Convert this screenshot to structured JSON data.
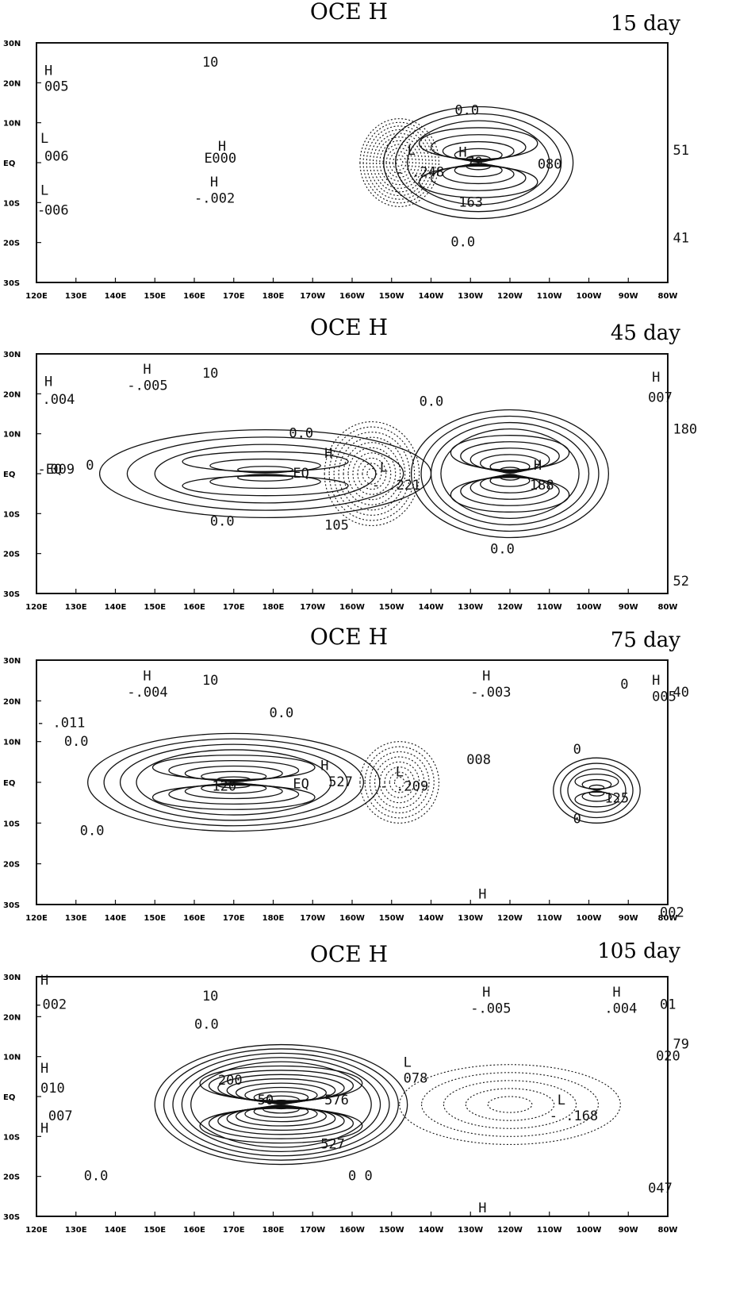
{
  "panels": [
    {
      "title": "OCE H",
      "day": "15 day",
      "annotations": [
        {
          "text": "H",
          "lon": 122,
          "lat": 22
        },
        {
          "text": "005",
          "lon": 122,
          "lat": 18
        },
        {
          "text": "L",
          "lon": 121,
          "lat": 5
        },
        {
          "text": "006",
          "lon": 122,
          "lat": 0.5
        },
        {
          "text": "L",
          "lon": 121,
          "lat": -8
        },
        {
          "text": "- ",
          "lon": 120.2,
          "lat": -13
        },
        {
          "text": "006",
          "lon": 122,
          "lat": -13
        },
        {
          "text": "10",
          "lon": 162,
          "lat": 24
        },
        {
          "text": "H",
          "lon": 166,
          "lat": 3
        },
        {
          "text": "000",
          "lon": 164.5,
          "lat": 0
        },
        {
          "text": "E",
          "lon": 162.5,
          "lat": 0
        },
        {
          "text": "H",
          "lon": 164,
          "lat": -6
        },
        {
          "text": "-.002",
          "lon": 160,
          "lat": -10
        },
        {
          "text": "0.0",
          "lon": 226,
          "lat": 12
        },
        {
          "text": "L",
          "lon": 214,
          "lat": 2
        },
        {
          "text": "- .248",
          "lon": 211,
          "lat": -3.5
        },
        {
          "text": "H",
          "lon": 227,
          "lat": 1.5
        },
        {
          "text": "79",
          "lon": 229,
          "lat": -1
        },
        {
          "text": "163",
          "lon": 227,
          "lat": -11
        },
        {
          "text": "080",
          "lon": 247,
          "lat": -1.5
        },
        {
          "text": "0.0",
          "lon": 225,
          "lat": -21
        },
        {
          "text": "51",
          "lon": 281.3,
          "lat": 2
        },
        {
          "text": "41",
          "lon": 281.3,
          "lat": -20
        }
      ],
      "legend_note": ""
    },
    {
      "title": "OCE H",
      "day": "45 day",
      "annotations": [
        {
          "text": "H",
          "lon": 122,
          "lat": 22
        },
        {
          "text": ".004",
          "lon": 121.5,
          "lat": 17.5
        },
        {
          "text": "H",
          "lon": 147,
          "lat": 25
        },
        {
          "text": "-.005",
          "lon": 143,
          "lat": 21
        },
        {
          "text": "10",
          "lon": 162,
          "lat": 24
        },
        {
          "text": "-EQ",
          "lon": 120.3,
          "lat": 0
        },
        {
          "text": "009",
          "lon": 123.5,
          "lat": 0
        },
        {
          "text": "0",
          "lon": 132.5,
          "lat": 1
        },
        {
          "text": "0.0",
          "lon": 184,
          "lat": 9
        },
        {
          "text": "EQ",
          "lon": 185,
          "lat": -1
        },
        {
          "text": "H",
          "lon": 193,
          "lat": 4
        },
        {
          "text": "- .221",
          "lon": 205,
          "lat": -4
        },
        {
          "text": "L",
          "lon": 207,
          "lat": 0.5
        },
        {
          "text": "105",
          "lon": 193,
          "lat": -14
        },
        {
          "text": "0.0",
          "lon": 164,
          "lat": -13
        },
        {
          "text": "0.0",
          "lon": 217,
          "lat": 17
        },
        {
          "text": "H",
          "lon": 246,
          "lat": 1
        },
        {
          "text": "188",
          "lon": 245,
          "lat": -4
        },
        {
          "text": "0.0",
          "lon": 235,
          "lat": -20
        },
        {
          "text": "007",
          "lon": 275,
          "lat": 18
        },
        {
          "text": "H",
          "lon": 276,
          "lat": 23
        },
        {
          "text": "180",
          "lon": 281.3,
          "lat": 10
        },
        {
          "text": "52",
          "lon": 281.3,
          "lat": -28
        }
      ],
      "legend_note": ""
    },
    {
      "title": "OCE H",
      "day": "75 day",
      "annotations": [
        {
          "text": "H",
          "lon": 147,
          "lat": 25
        },
        {
          "text": "-.004",
          "lon": 143,
          "lat": 21
        },
        {
          "text": "10",
          "lon": 162,
          "lat": 24
        },
        {
          "text": "H",
          "lon": 233,
          "lat": 25
        },
        {
          "text": "-.003",
          "lon": 230,
          "lat": 21
        },
        {
          "text": "- .011",
          "lon": 120,
          "lat": 13.5
        },
        {
          "text": "0.0",
          "lon": 127,
          "lat": 9
        },
        {
          "text": "0.0",
          "lon": 179,
          "lat": 16
        },
        {
          "text": "120",
          "lon": 164.5,
          "lat": -2
        },
        {
          "text": "EQ",
          "lon": 185,
          "lat": -1.5
        },
        {
          "text": "H",
          "lon": 192,
          "lat": 3
        },
        {
          "text": "527",
          "lon": 194,
          "lat": -1
        },
        {
          "text": "L",
          "lon": 211,
          "lat": 1.5
        },
        {
          "text": "- .209",
          "lon": 207,
          "lat": -2
        },
        {
          "text": "008",
          "lon": 229,
          "lat": 4.5
        },
        {
          "text": "0.0",
          "lon": 131,
          "lat": -13
        },
        {
          "text": "125",
          "lon": 264,
          "lat": -5
        },
        {
          "text": "0",
          "lon": 256,
          "lat": 7
        },
        {
          "text": "0",
          "lon": 256,
          "lat": -10
        },
        {
          "text": "0",
          "lon": 268,
          "lat": 23
        },
        {
          "text": "H",
          "lon": 276,
          "lat": 24
        },
        {
          "text": "005",
          "lon": 276,
          "lat": 20
        },
        {
          "text": "40",
          "lon": 281.3,
          "lat": 21
        },
        {
          "text": "H",
          "lon": 232,
          "lat": -28.5
        },
        {
          "text": "002",
          "lon": 278,
          "lat": -33
        }
      ],
      "legend_note": ""
    },
    {
      "title": "OCE H",
      "day": "105 day",
      "annotations": [
        {
          "text": "H",
          "lon": 121,
          "lat": 28
        },
        {
          "text": "- ",
          "lon": 119.5,
          "lat": 22
        },
        {
          "text": "002",
          "lon": 121.5,
          "lat": 22
        },
        {
          "text": "10",
          "lon": 162,
          "lat": 24
        },
        {
          "text": "H",
          "lon": 233,
          "lat": 25
        },
        {
          "text": "-.005",
          "lon": 230,
          "lat": 21
        },
        {
          "text": "H",
          "lon": 266,
          "lat": 25
        },
        {
          "text": ".004",
          "lon": 264,
          "lat": 21
        },
        {
          "text": "01",
          "lon": 278,
          "lat": 22
        },
        {
          "text": "0.0",
          "lon": 160,
          "lat": 17
        },
        {
          "text": "L",
          "lon": 213,
          "lat": 7.5
        },
        {
          "text": "078",
          "lon": 213,
          "lat": 3.5
        },
        {
          "text": "200",
          "lon": 166,
          "lat": 3
        },
        {
          "text": "50",
          "lon": 176,
          "lat": -2
        },
        {
          "text": "576",
          "lon": 193,
          "lat": -2
        },
        {
          "text": "527",
          "lon": 192,
          "lat": -13
        },
        {
          "text": "L",
          "lon": 252,
          "lat": -2
        },
        {
          "text": "- .168",
          "lon": 250,
          "lat": -6
        },
        {
          "text": "H",
          "lon": 121,
          "lat": 6
        },
        {
          "text": "010",
          "lon": 121,
          "lat": 1
        },
        {
          "text": "H",
          "lon": 121,
          "lat": -9
        },
        {
          "text": "007",
          "lon": 123,
          "lat": -6
        },
        {
          "text": "0.0",
          "lon": 132,
          "lat": -21
        },
        {
          "text": "0 0",
          "lon": 199,
          "lat": -21
        },
        {
          "text": "020",
          "lon": 277,
          "lat": 9
        },
        {
          "text": "79",
          "lon": 281.3,
          "lat": 12
        },
        {
          "text": "H",
          "lon": 232,
          "lat": -29
        },
        {
          "text": "047",
          "lon": 275,
          "lat": -24
        }
      ],
      "legend_note": ""
    }
  ],
  "lat_ticks": [
    "30N",
    "20N",
    "10N",
    "EQ",
    "10S",
    "20S",
    "30S"
  ],
  "lon_ticks": [
    "120E",
    "130E",
    "140E",
    "150E",
    "160E",
    "170E",
    "180E",
    "170W",
    "160W",
    "150W",
    "140W",
    "130W",
    "120W",
    "110W",
    "100W",
    "90W",
    "80W"
  ],
  "chart_data": [
    {
      "type": "contour",
      "title": "OCE H",
      "subtitle": "15 day",
      "xlim": [
        120,
        280
      ],
      "ylim": [
        -30,
        30
      ],
      "contour_interval_note": "",
      "extrema": [
        {
          "kind": "L",
          "lon": 214,
          "lat": 0,
          "value": -0.248
        },
        {
          "kind": "H",
          "lon": 228,
          "lat": 2,
          "value": 0.079
        },
        {
          "kind": "H",
          "lon": 228,
          "lat": -6,
          "value": 0.163
        },
        {
          "kind": "H",
          "lon": 122,
          "lat": 20,
          "value": 0.005
        },
        {
          "kind": "L",
          "lon": 122,
          "lat": 2,
          "value": 0.006
        },
        {
          "kind": "L",
          "lon": 122,
          "lat": -10,
          "value": -0.006
        },
        {
          "kind": "H",
          "lon": 165,
          "lat": 0,
          "value": 0.0
        },
        {
          "kind": "H",
          "lon": 163,
          "lat": -8,
          "value": -0.002
        }
      ],
      "features": [
        {
          "type": "positive-lobe",
          "cx": 232,
          "cy": 0,
          "rx": 24,
          "ry": 14,
          "levels": 8
        },
        {
          "type": "negative-lobe",
          "cx": 212,
          "cy": 0,
          "rx": 10,
          "ry": 11,
          "levels": 12
        }
      ]
    },
    {
      "type": "contour",
      "title": "OCE H",
      "subtitle": "45 day",
      "xlim": [
        120,
        280
      ],
      "ylim": [
        -30,
        30
      ],
      "extrema": [
        {
          "kind": "H",
          "lon": 122,
          "lat": 20,
          "value": 0.004
        },
        {
          "kind": "H",
          "lon": 147,
          "lat": 23,
          "value": -0.005
        },
        {
          "kind": "L",
          "lon": 207,
          "lat": -2,
          "value": -0.221
        },
        {
          "kind": "H",
          "lon": 193,
          "lat": 5,
          "value": 0.105
        },
        {
          "kind": "H",
          "lon": 246,
          "lat": -2,
          "value": 0.188
        },
        {
          "kind": "H",
          "lon": 276,
          "lat": 20,
          "value": 0.007
        }
      ],
      "features": [
        {
          "type": "positive-lobe",
          "cx": 178,
          "cy": 0,
          "rx": 42,
          "ry": 11,
          "levels": 6
        },
        {
          "type": "positive-lobe",
          "cx": 240,
          "cy": 0,
          "rx": 25,
          "ry": 16,
          "levels": 10
        },
        {
          "type": "negative-lobe",
          "cx": 205,
          "cy": 0,
          "rx": 12,
          "ry": 13,
          "levels": 10
        }
      ]
    },
    {
      "type": "contour",
      "title": "OCE H",
      "subtitle": "75 day",
      "xlim": [
        120,
        280
      ],
      "ylim": [
        -30,
        30
      ],
      "extrema": [
        {
          "kind": "H",
          "lon": 147,
          "lat": 23,
          "value": -0.004
        },
        {
          "kind": "H",
          "lon": 233,
          "lat": 23,
          "value": -0.003
        },
        {
          "kind": "H",
          "lon": 192,
          "lat": 2,
          "value": 0.527
        },
        {
          "kind": "L",
          "lon": 211,
          "lat": -1,
          "value": -0.209
        },
        {
          "kind": "H",
          "lon": 264,
          "lat": -3,
          "value": 0.125
        },
        {
          "kind": "H",
          "lon": 276,
          "lat": 22,
          "value": 0.005
        }
      ],
      "features": [
        {
          "type": "positive-lobe",
          "cx": 170,
          "cy": 0,
          "rx": 37,
          "ry": 12,
          "levels": 9
        },
        {
          "type": "positive-lobe",
          "cx": 262,
          "cy": -2,
          "rx": 11,
          "ry": 8,
          "levels": 6
        },
        {
          "type": "negative-lobe",
          "cx": 212,
          "cy": 0,
          "rx": 10,
          "ry": 10,
          "levels": 8
        }
      ]
    },
    {
      "type": "contour",
      "title": "OCE H",
      "subtitle": "105 day",
      "xlim": [
        120,
        280
      ],
      "ylim": [
        -30,
        30
      ],
      "extrema": [
        {
          "kind": "H",
          "lon": 121,
          "lat": 25,
          "value": -0.002
        },
        {
          "kind": "H",
          "lon": 233,
          "lat": 23,
          "value": -0.005
        },
        {
          "kind": "H",
          "lon": 266,
          "lat": 23,
          "value": 0.004
        },
        {
          "kind": "H",
          "lon": 193,
          "lat": 2,
          "value": 0.576
        },
        {
          "kind": "H",
          "lon": 192,
          "lat": -10,
          "value": 0.527
        },
        {
          "kind": "L",
          "lon": 213,
          "lat": 5,
          "value": 0.078
        },
        {
          "kind": "L",
          "lon": 252,
          "lat": -4,
          "value": -0.168
        }
      ],
      "features": [
        {
          "type": "positive-lobe",
          "cx": 182,
          "cy": -2,
          "rx": 32,
          "ry": 15,
          "levels": 14
        },
        {
          "type": "negative-lobe",
          "cx": 240,
          "cy": -2,
          "rx": 28,
          "ry": 10,
          "levels": 5
        }
      ]
    }
  ]
}
